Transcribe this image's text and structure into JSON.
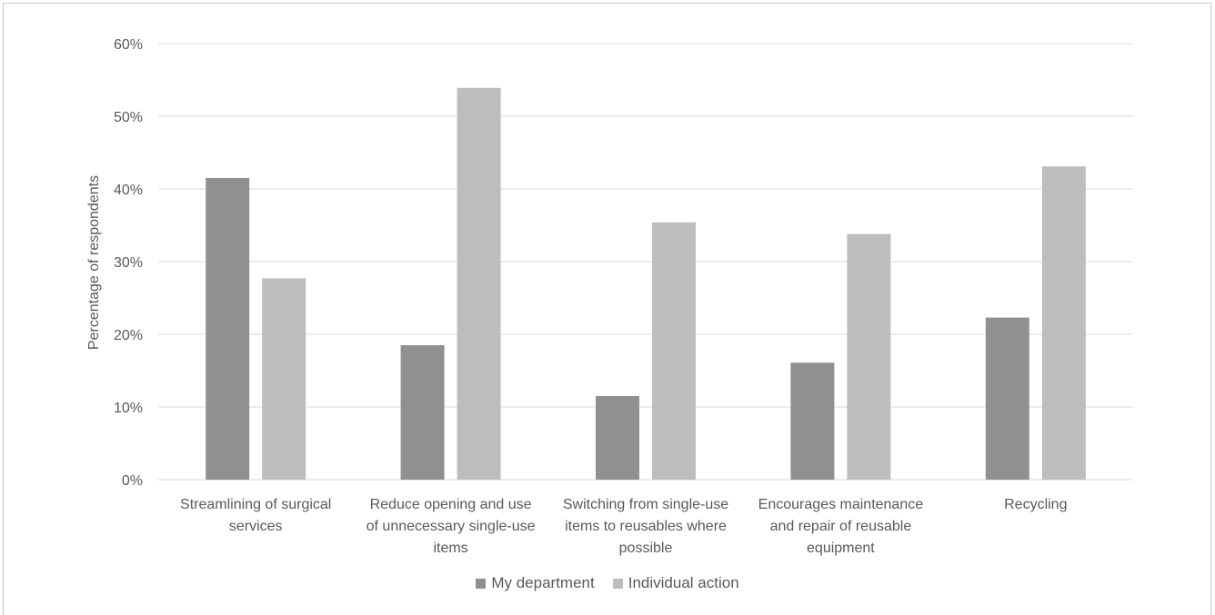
{
  "chart_data": {
    "type": "bar",
    "title": "",
    "xlabel": "",
    "ylabel": "Percentage of respondents",
    "ylim": [
      0,
      60
    ],
    "yticks": [
      "0%",
      "10%",
      "20%",
      "30%",
      "40%",
      "50%",
      "60%"
    ],
    "categories": [
      [
        "Streamlining of surgical",
        "services"
      ],
      [
        "Reduce opening and use",
        "of unnecessary single-use",
        "items"
      ],
      [
        "Switching from single-use",
        "items to reusables where",
        "possible"
      ],
      [
        "Encourages maintenance",
        "and repair of reusable",
        "equipment"
      ],
      [
        "Recycling"
      ]
    ],
    "series": [
      {
        "name": "My department",
        "color": "#909090",
        "values": [
          41.5,
          18.5,
          11.5,
          16.1,
          22.3
        ]
      },
      {
        "name": "Individual action",
        "color": "#bdbdbd",
        "values": [
          27.7,
          53.9,
          35.4,
          33.8,
          43.1
        ]
      }
    ],
    "grid": true,
    "legend_position": "bottom"
  }
}
